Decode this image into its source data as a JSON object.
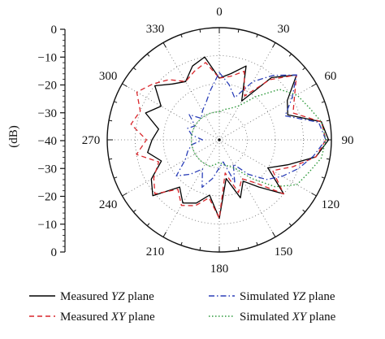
{
  "chart_data": {
    "type": "polar-line",
    "title": "",
    "radial_axis": {
      "label": "(dB)",
      "range": [
        -40,
        0
      ],
      "ticks": [
        0,
        -10,
        -20,
        -30,
        -40,
        -30,
        -20,
        -10,
        0
      ],
      "grid": true
    },
    "angular_axis": {
      "unit": "deg",
      "zero_at": "top",
      "direction": "clockwise",
      "ticks": [
        0,
        30,
        60,
        90,
        120,
        150,
        180,
        210,
        240,
        270,
        300,
        330
      ],
      "grid": true
    },
    "legend": {
      "placement": "bottom",
      "columns": 2
    },
    "series": [
      {
        "name": "Measured YZ plane",
        "color": "#000000",
        "style": "solid",
        "values": [
          [
            0,
            -18
          ],
          [
            10,
            -16
          ],
          [
            20,
            -12
          ],
          [
            30,
            -24
          ],
          [
            40,
            -11
          ],
          [
            50,
            -4
          ],
          [
            60,
            -12
          ],
          [
            70,
            -14
          ],
          [
            80,
            -3
          ],
          [
            90,
            -1
          ],
          [
            100,
            -5
          ],
          [
            110,
            -14
          ],
          [
            120,
            -20
          ],
          [
            130,
            -10
          ],
          [
            140,
            -18
          ],
          [
            150,
            -23
          ],
          [
            160,
            -18
          ],
          [
            170,
            -26
          ],
          [
            180,
            -12
          ],
          [
            190,
            -20
          ],
          [
            200,
            -16
          ],
          [
            210,
            -14
          ],
          [
            220,
            -18
          ],
          [
            230,
            -9
          ],
          [
            240,
            -12
          ],
          [
            250,
            -18
          ],
          [
            260,
            -14
          ],
          [
            270,
            -16
          ],
          [
            280,
            -18
          ],
          [
            290,
            -12
          ],
          [
            300,
            -16
          ],
          [
            310,
            -10
          ],
          [
            320,
            -14
          ],
          [
            330,
            -16
          ],
          [
            340,
            -12
          ],
          [
            350,
            -10
          ]
        ]
      },
      {
        "name": "Measured XY plane",
        "color": "#d9262b",
        "style": "dashed",
        "values": [
          [
            0,
            -18
          ],
          [
            10,
            -17
          ],
          [
            20,
            -14
          ],
          [
            30,
            -22
          ],
          [
            40,
            -12
          ],
          [
            50,
            -4
          ],
          [
            60,
            -9
          ],
          [
            70,
            -12
          ],
          [
            80,
            -3
          ],
          [
            90,
            -2
          ],
          [
            100,
            -5
          ],
          [
            110,
            -12
          ],
          [
            120,
            -18
          ],
          [
            130,
            -10
          ],
          [
            140,
            -20
          ],
          [
            150,
            -24
          ],
          [
            160,
            -20
          ],
          [
            170,
            -28
          ],
          [
            180,
            -12
          ],
          [
            190,
            -19
          ],
          [
            200,
            -15
          ],
          [
            210,
            -13
          ],
          [
            220,
            -17
          ],
          [
            230,
            -10
          ],
          [
            240,
            -13
          ],
          [
            250,
            -17
          ],
          [
            260,
            -10
          ],
          [
            270,
            -14
          ],
          [
            280,
            -8
          ],
          [
            290,
            -10
          ],
          [
            300,
            -6
          ],
          [
            310,
            -9
          ],
          [
            320,
            -12
          ],
          [
            330,
            -16
          ],
          [
            340,
            -14
          ],
          [
            350,
            -12
          ]
        ]
      },
      {
        "name": "Simulated YZ plane",
        "color": "#2b3fb8",
        "style": "dashdot",
        "values": [
          [
            0,
            -16
          ],
          [
            10,
            -20
          ],
          [
            20,
            -24
          ],
          [
            30,
            -16
          ],
          [
            40,
            -10
          ],
          [
            50,
            -4
          ],
          [
            60,
            -10
          ],
          [
            70,
            -15
          ],
          [
            80,
            -4
          ],
          [
            90,
            -2
          ],
          [
            100,
            -6
          ],
          [
            110,
            -10
          ],
          [
            120,
            -14
          ],
          [
            130,
            -18
          ],
          [
            140,
            -24
          ],
          [
            150,
            -30
          ],
          [
            160,
            -24
          ],
          [
            170,
            -32
          ],
          [
            180,
            -30
          ],
          [
            190,
            -26
          ],
          [
            200,
            -22
          ],
          [
            210,
            -28
          ],
          [
            220,
            -24
          ],
          [
            230,
            -20
          ],
          [
            240,
            -26
          ],
          [
            250,
            -28
          ],
          [
            260,
            -30
          ],
          [
            270,
            -34
          ],
          [
            280,
            -30
          ],
          [
            290,
            -28
          ],
          [
            300,
            -30
          ],
          [
            310,
            -26
          ],
          [
            320,
            -30
          ],
          [
            330,
            -28
          ],
          [
            340,
            -26
          ],
          [
            350,
            -22
          ]
        ]
      },
      {
        "name": "Simulated XY plane",
        "color": "#2e9a3c",
        "style": "dotted",
        "values": [
          [
            0,
            -30
          ],
          [
            10,
            -29
          ],
          [
            20,
            -28
          ],
          [
            30,
            -26
          ],
          [
            40,
            -20
          ],
          [
            50,
            -12
          ],
          [
            60,
            -8
          ],
          [
            70,
            -6
          ],
          [
            80,
            -3
          ],
          [
            90,
            -2
          ],
          [
            100,
            -3
          ],
          [
            110,
            -6
          ],
          [
            120,
            -8
          ],
          [
            130,
            -14
          ],
          [
            140,
            -22
          ],
          [
            150,
            -28
          ],
          [
            160,
            -30
          ],
          [
            170,
            -31
          ],
          [
            180,
            -32
          ],
          [
            190,
            -31
          ],
          [
            200,
            -30
          ],
          [
            210,
            -30
          ],
          [
            220,
            -30
          ],
          [
            230,
            -30
          ],
          [
            240,
            -30
          ],
          [
            250,
            -30
          ],
          [
            260,
            -30
          ],
          [
            270,
            -30
          ],
          [
            280,
            -30
          ],
          [
            290,
            -30
          ],
          [
            300,
            -30
          ],
          [
            310,
            -30
          ],
          [
            320,
            -30
          ],
          [
            330,
            -30
          ],
          [
            340,
            -30
          ],
          [
            350,
            -30
          ]
        ]
      }
    ]
  }
}
